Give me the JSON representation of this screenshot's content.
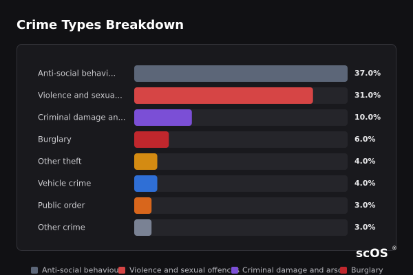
{
  "chart_data": {
    "type": "bar",
    "orientation": "horizontal",
    "title": "Crime Types Breakdown",
    "categories": [
      "Anti-social behavi...",
      "Violence and sexua...",
      "Criminal damage an...",
      "Burglary",
      "Other theft",
      "Vehicle crime",
      "Public order",
      "Other crime"
    ],
    "values": [
      37,
      31,
      10,
      6,
      4,
      4,
      3,
      3
    ],
    "value_labels": [
      "37.0%",
      "31.0%",
      "10.0%",
      "6.0%",
      "4.0%",
      "4.0%",
      "3.0%",
      "3.0%"
    ],
    "colors": [
      "#5c6678",
      "#d64545",
      "#7b4fd6",
      "#c0272d",
      "#d48b12",
      "#2f6fd6",
      "#d8661c",
      "#7a8294"
    ],
    "xlim": [
      0,
      37
    ],
    "legend": [
      {
        "name": "Anti-social behaviour",
        "color": "#5c6678"
      },
      {
        "name": "Violence and sexual offences",
        "color": "#d64545"
      },
      {
        "name": "Criminal damage and arson",
        "color": "#7b4fd6"
      },
      {
        "name": "Burglary",
        "color": "#c0272d"
      }
    ]
  },
  "logo": {
    "text": "scOS",
    "mark": "®"
  }
}
